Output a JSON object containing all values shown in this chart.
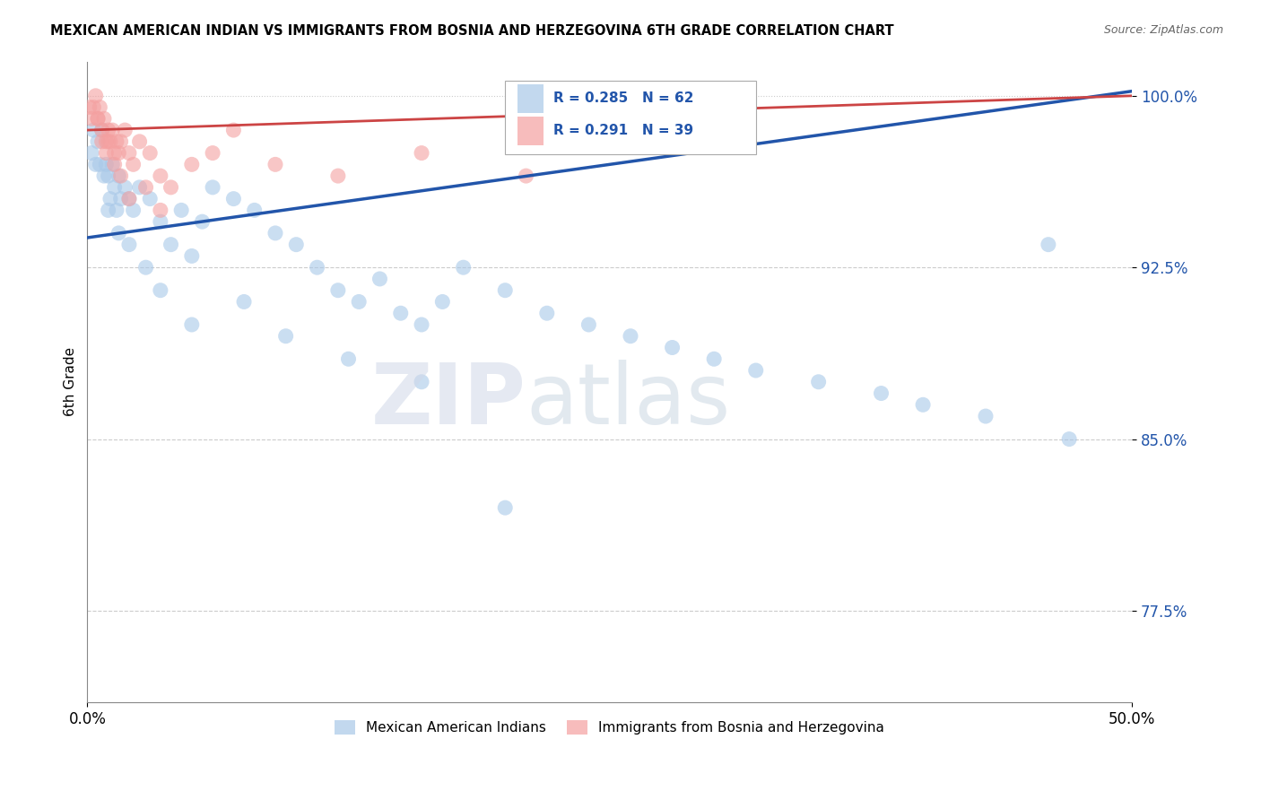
{
  "title": "MEXICAN AMERICAN INDIAN VS IMMIGRANTS FROM BOSNIA AND HERZEGOVINA 6TH GRADE CORRELATION CHART",
  "source": "Source: ZipAtlas.com",
  "ylabel": "6th Grade",
  "yticks": [
    77.5,
    85.0,
    92.5,
    100.0
  ],
  "xlim": [
    0.0,
    50.0
  ],
  "ylim": [
    73.5,
    101.5
  ],
  "blue_color": "#a8c8e8",
  "pink_color": "#f4a0a0",
  "blue_line_color": "#2255aa",
  "pink_line_color": "#cc4444",
  "watermark_zip": "ZIP",
  "watermark_atlas": "atlas",
  "blue_line_x": [
    0.0,
    50.0
  ],
  "blue_line_y": [
    93.8,
    100.2
  ],
  "pink_line_x": [
    0.0,
    50.0
  ],
  "pink_line_y": [
    98.5,
    100.0
  ],
  "blue_scatter_x": [
    0.2,
    0.3,
    0.4,
    0.5,
    0.6,
    0.7,
    0.8,
    0.9,
    1.0,
    1.1,
    1.2,
    1.3,
    1.4,
    1.5,
    1.6,
    1.8,
    2.0,
    2.2,
    2.5,
    3.0,
    3.5,
    4.0,
    4.5,
    5.0,
    5.5,
    6.0,
    7.0,
    8.0,
    9.0,
    10.0,
    11.0,
    12.0,
    13.0,
    14.0,
    15.0,
    16.0,
    17.0,
    18.0,
    20.0,
    22.0,
    24.0,
    26.0,
    28.0,
    30.0,
    32.0,
    35.0,
    38.0,
    40.0,
    43.0,
    47.0,
    1.0,
    1.5,
    2.0,
    2.8,
    3.5,
    5.0,
    7.5,
    9.5,
    12.5,
    16.0,
    20.0,
    46.0
  ],
  "blue_scatter_y": [
    97.5,
    98.5,
    97.0,
    98.0,
    97.0,
    98.5,
    96.5,
    97.0,
    96.5,
    95.5,
    97.0,
    96.0,
    95.0,
    96.5,
    95.5,
    96.0,
    95.5,
    95.0,
    96.0,
    95.5,
    94.5,
    93.5,
    95.0,
    93.0,
    94.5,
    96.0,
    95.5,
    95.0,
    94.0,
    93.5,
    92.5,
    91.5,
    91.0,
    92.0,
    90.5,
    90.0,
    91.0,
    92.5,
    91.5,
    90.5,
    90.0,
    89.5,
    89.0,
    88.5,
    88.0,
    87.5,
    87.0,
    86.5,
    86.0,
    85.0,
    95.0,
    94.0,
    93.5,
    92.5,
    91.5,
    90.0,
    91.0,
    89.5,
    88.5,
    87.5,
    82.0,
    93.5
  ],
  "pink_scatter_x": [
    0.1,
    0.2,
    0.3,
    0.4,
    0.5,
    0.6,
    0.7,
    0.8,
    0.9,
    1.0,
    1.1,
    1.2,
    1.3,
    1.4,
    1.5,
    1.6,
    1.8,
    2.0,
    2.2,
    2.5,
    3.0,
    3.5,
    4.0,
    5.0,
    6.0,
    7.0,
    9.0,
    12.0,
    16.0,
    21.0,
    0.5,
    0.7,
    0.9,
    1.0,
    1.3,
    1.6,
    2.0,
    2.8,
    3.5
  ],
  "pink_scatter_y": [
    99.5,
    99.0,
    99.5,
    100.0,
    99.0,
    99.5,
    98.5,
    99.0,
    98.0,
    98.5,
    98.0,
    98.5,
    97.5,
    98.0,
    97.5,
    98.0,
    98.5,
    97.5,
    97.0,
    98.0,
    97.5,
    96.5,
    96.0,
    97.0,
    97.5,
    98.5,
    97.0,
    96.5,
    97.5,
    96.5,
    99.0,
    98.0,
    97.5,
    98.0,
    97.0,
    96.5,
    95.5,
    96.0,
    95.0
  ],
  "legend_R1": "R = 0.285",
  "legend_N1": "N = 62",
  "legend_R2": "R = 0.291",
  "legend_N2": "N = 39"
}
